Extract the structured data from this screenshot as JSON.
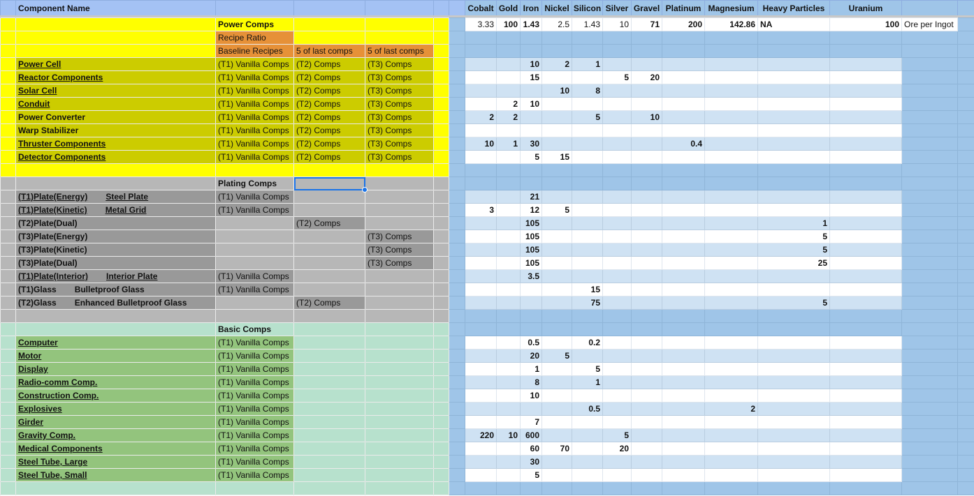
{
  "header": {
    "component_name": "Component Name",
    "resources": [
      "Cobalt",
      "Gold",
      "Iron",
      "Nickel",
      "Silicon",
      "Silver",
      "Gravel",
      "Platinum",
      "Magnesium",
      "Heavy Particles",
      "Uranium"
    ]
  },
  "ore_row": {
    "values": [
      "3.33",
      "100",
      "1.43",
      "2.5",
      "1.43",
      "10",
      "71",
      "200",
      "142.86",
      "NA",
      "100"
    ],
    "label": "Ore per Ingot"
  },
  "power": {
    "title": "Power Comps",
    "recipe_ratio": "Recipe Ratio",
    "col_headers": [
      "Baseline Recipes",
      "5 of last comps",
      "5 of last comps"
    ],
    "rows": [
      {
        "name": "Power Cell",
        "link": true,
        "tiers": [
          "(T1) Vanilla Comps",
          "(T2) Comps",
          "(T3) Comps"
        ],
        "values": [
          null,
          null,
          "10",
          "2",
          "1",
          null,
          null,
          null,
          null,
          null,
          null
        ]
      },
      {
        "name": "Reactor Components",
        "link": true,
        "tiers": [
          "(T1) Vanilla Comps",
          "(T2) Comps",
          "(T3) Comps"
        ],
        "values": [
          null,
          null,
          "15",
          null,
          null,
          "5",
          "20",
          null,
          null,
          null,
          null
        ]
      },
      {
        "name": "Solar Cell",
        "link": true,
        "tiers": [
          "(T1) Vanilla Comps",
          "(T2) Comps",
          "(T3) Comps"
        ],
        "values": [
          null,
          null,
          null,
          "10",
          "8",
          null,
          null,
          null,
          null,
          null,
          null
        ]
      },
      {
        "name": "Conduit",
        "link": true,
        "tiers": [
          "(T1) Vanilla Comps",
          "(T2) Comps",
          "(T3) Comps"
        ],
        "values": [
          null,
          "2",
          "10",
          null,
          null,
          null,
          null,
          null,
          null,
          null,
          null
        ]
      },
      {
        "name": "Power Converter",
        "link": false,
        "tiers": [
          "(T1) Vanilla Comps",
          "(T2) Comps",
          "(T3) Comps"
        ],
        "values": [
          "2",
          "2",
          null,
          null,
          "5",
          null,
          "10",
          null,
          null,
          null,
          null
        ]
      },
      {
        "name": "Warp Stabilizer",
        "link": false,
        "tiers": [
          "(T1) Vanilla Comps",
          "(T2) Comps",
          "(T3) Comps"
        ],
        "values": [
          null,
          null,
          null,
          null,
          null,
          null,
          null,
          null,
          null,
          null,
          null
        ]
      },
      {
        "name": "Thruster Components",
        "link": true,
        "tiers": [
          "(T1) Vanilla Comps",
          "(T2) Comps",
          "(T3) Comps"
        ],
        "values": [
          "10",
          "1",
          "30",
          null,
          null,
          null,
          null,
          "0.4",
          null,
          null,
          null
        ]
      },
      {
        "name": "Detector Components",
        "link": true,
        "tiers": [
          "(T1) Vanilla Comps",
          "(T2) Comps",
          "(T3) Comps"
        ],
        "values": [
          null,
          null,
          "5",
          "15",
          null,
          null,
          null,
          null,
          null,
          null,
          null
        ]
      }
    ]
  },
  "plating": {
    "title": "Plating Comps",
    "rows": [
      {
        "name": "(T1)Plate(Energy)",
        "alias": "Steel Plate",
        "link": true,
        "tiers": [
          "(T1) Vanilla Comps",
          null,
          null
        ],
        "values": [
          null,
          null,
          "21",
          null,
          null,
          null,
          null,
          null,
          null,
          null,
          null
        ]
      },
      {
        "name": "(T1)Plate(Kinetic)",
        "alias": "Metal Grid",
        "link": true,
        "tiers": [
          "(T1) Vanilla Comps",
          null,
          null
        ],
        "values": [
          "3",
          null,
          "12",
          "5",
          null,
          null,
          null,
          null,
          null,
          null,
          null
        ]
      },
      {
        "name": "(T2)Plate(Dual)",
        "link": false,
        "tiers": [
          null,
          "(T2) Comps",
          null
        ],
        "values": [
          null,
          null,
          "105",
          null,
          null,
          null,
          null,
          null,
          null,
          "1",
          null
        ]
      },
      {
        "name": "(T3)Plate(Energy)",
        "link": false,
        "tiers": [
          null,
          null,
          "(T3) Comps"
        ],
        "values": [
          null,
          null,
          "105",
          null,
          null,
          null,
          null,
          null,
          null,
          "5",
          null
        ]
      },
      {
        "name": "(T3)Plate(Kinetic)",
        "link": false,
        "tiers": [
          null,
          null,
          "(T3) Comps"
        ],
        "values": [
          null,
          null,
          "105",
          null,
          null,
          null,
          null,
          null,
          null,
          "5",
          null
        ]
      },
      {
        "name": "(T3)Plate(Dual)",
        "link": false,
        "tiers": [
          null,
          null,
          "(T3) Comps"
        ],
        "values": [
          null,
          null,
          "105",
          null,
          null,
          null,
          null,
          null,
          null,
          "25",
          null
        ]
      },
      {
        "name": "(T1)Plate(Interior)",
        "alias": "Interior Plate",
        "link": true,
        "tiers": [
          "(T1) Vanilla Comps",
          null,
          null
        ],
        "values": [
          null,
          null,
          "3.5",
          null,
          null,
          null,
          null,
          null,
          null,
          null,
          null
        ]
      },
      {
        "name": "(T1)Glass",
        "alias": "Bulletproof Glass",
        "link": false,
        "tiers": [
          "(T1) Vanilla Comps",
          null,
          null
        ],
        "values": [
          null,
          null,
          null,
          null,
          "15",
          null,
          null,
          null,
          null,
          null,
          null
        ]
      },
      {
        "name": "(T2)Glass",
        "alias": "Enhanced Bulletproof Glass",
        "link": false,
        "tiers": [
          null,
          "(T2) Comps",
          null
        ],
        "values": [
          null,
          null,
          null,
          null,
          "75",
          null,
          null,
          null,
          null,
          "5",
          null
        ]
      }
    ]
  },
  "basic": {
    "title": "Basic Comps",
    "rows": [
      {
        "name": "Computer",
        "link": true,
        "tiers": [
          "(T1) Vanilla Comps",
          null,
          null
        ],
        "values": [
          null,
          null,
          "0.5",
          null,
          "0.2",
          null,
          null,
          null,
          null,
          null,
          null
        ]
      },
      {
        "name": "Motor",
        "link": true,
        "tiers": [
          "(T1) Vanilla Comps",
          null,
          null
        ],
        "values": [
          null,
          null,
          "20",
          "5",
          null,
          null,
          null,
          null,
          null,
          null,
          null
        ]
      },
      {
        "name": "Display",
        "link": true,
        "tiers": [
          "(T1) Vanilla Comps",
          null,
          null
        ],
        "values": [
          null,
          null,
          "1",
          null,
          "5",
          null,
          null,
          null,
          null,
          null,
          null
        ]
      },
      {
        "name": "Radio-comm  Comp.",
        "link": true,
        "tiers": [
          "(T1) Vanilla Comps",
          null,
          null
        ],
        "values": [
          null,
          null,
          "8",
          null,
          "1",
          null,
          null,
          null,
          null,
          null,
          null
        ]
      },
      {
        "name": "Construction Comp.",
        "link": true,
        "tiers": [
          "(T1) Vanilla Comps",
          null,
          null
        ],
        "values": [
          null,
          null,
          "10",
          null,
          null,
          null,
          null,
          null,
          null,
          null,
          null
        ]
      },
      {
        "name": "Explosives",
        "link": true,
        "tiers": [
          "(T1) Vanilla Comps",
          null,
          null
        ],
        "values": [
          null,
          null,
          null,
          null,
          "0.5",
          null,
          null,
          null,
          "2",
          null,
          null
        ]
      },
      {
        "name": "Girder",
        "link": true,
        "tiers": [
          "(T1) Vanilla Comps",
          null,
          null
        ],
        "values": [
          null,
          null,
          "7",
          null,
          null,
          null,
          null,
          null,
          null,
          null,
          null
        ]
      },
      {
        "name": "Gravity Comp.",
        "link": true,
        "tiers": [
          "(T1) Vanilla Comps",
          null,
          null
        ],
        "values": [
          "220",
          "10",
          "600",
          null,
          null,
          "5",
          null,
          null,
          null,
          null,
          null
        ]
      },
      {
        "name": "Medical Components",
        "link": true,
        "tiers": [
          "(T1) Vanilla Comps",
          null,
          null
        ],
        "values": [
          null,
          null,
          "60",
          "70",
          null,
          "20",
          null,
          null,
          null,
          null,
          null
        ]
      },
      {
        "name": "Steel Tube, Large",
        "link": true,
        "tiers": [
          "(T1) Vanilla Comps",
          null,
          null
        ],
        "values": [
          null,
          null,
          "30",
          null,
          null,
          null,
          null,
          null,
          null,
          null,
          null
        ]
      },
      {
        "name": "Steel Tube, Small",
        "link": true,
        "tiers": [
          "(T1) Vanilla Comps",
          null,
          null
        ],
        "values": [
          null,
          null,
          "5",
          null,
          null,
          null,
          null,
          null,
          null,
          null,
          null
        ]
      }
    ]
  },
  "colors": {
    "power_bg": "#ffff00",
    "power_item": "#cccc00",
    "ratio": "#e69138",
    "plating_bg": "#b7b7b7",
    "plating_item": "#999999",
    "basic_bg": "#b7e1cd",
    "basic_item": "#93c47d",
    "header": "#a4c2f4",
    "data_band": "#cfe2f3",
    "data_dark": "#9fc5e8",
    "selection": "#1a73e8"
  }
}
